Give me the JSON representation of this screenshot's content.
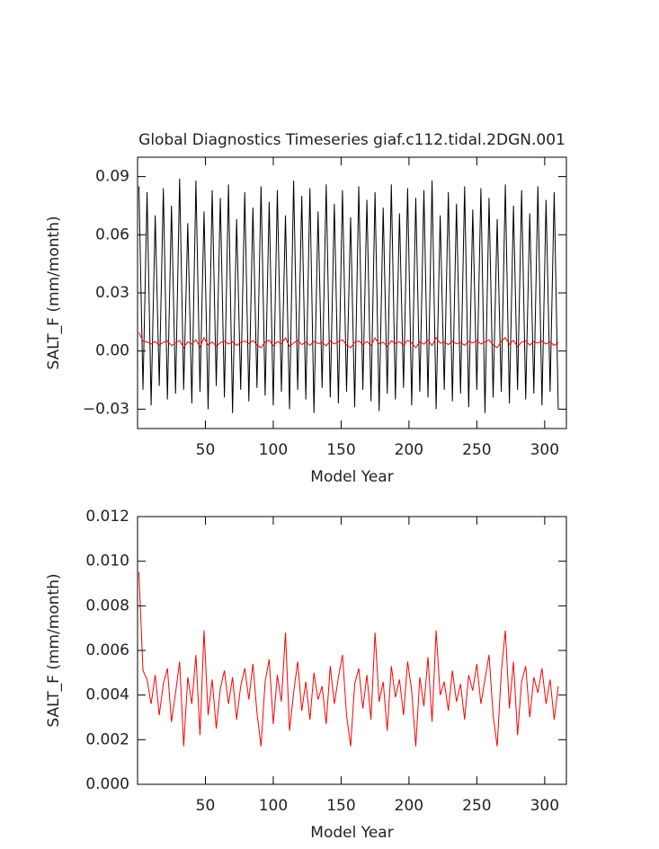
{
  "chart_data": [
    {
      "type": "line",
      "title": "Global Diagnostics Timeseries giaf.c112.tidal.2DGN.001",
      "xlabel": "Model Year",
      "ylabel": "SALT_F (mm/month)",
      "xlim": [
        0,
        316
      ],
      "xticks": [
        50,
        100,
        150,
        200,
        250,
        300
      ],
      "ylim": [
        -0.04,
        0.1
      ],
      "yticks": [
        {
          "value": -0.03,
          "label": "−0.03"
        },
        {
          "value": 0,
          "label": "0.00"
        },
        0.03,
        0.06,
        0.09
      ],
      "x": [
        1,
        4,
        7,
        10,
        13,
        16,
        19,
        22,
        25,
        28,
        31,
        34,
        37,
        40,
        43,
        46,
        49,
        52,
        55,
        58,
        61,
        64,
        67,
        70,
        73,
        76,
        79,
        82,
        85,
        88,
        91,
        94,
        97,
        100,
        103,
        106,
        109,
        112,
        115,
        118,
        121,
        124,
        127,
        130,
        133,
        136,
        139,
        142,
        145,
        148,
        151,
        154,
        157,
        160,
        163,
        166,
        169,
        172,
        175,
        178,
        181,
        184,
        187,
        190,
        193,
        196,
        199,
        202,
        205,
        208,
        211,
        214,
        217,
        220,
        223,
        226,
        229,
        232,
        235,
        238,
        241,
        244,
        247,
        250,
        253,
        256,
        259,
        262,
        265,
        268,
        271,
        274,
        277,
        280,
        283,
        286,
        289,
        292,
        295,
        298,
        301,
        304,
        307,
        310
      ],
      "series": [
        {
          "color": "#000000",
          "values": [
            0.085,
            -0.02,
            0.082,
            -0.028,
            0.07,
            -0.018,
            0.084,
            -0.025,
            0.075,
            -0.022,
            0.089,
            -0.02,
            0.066,
            -0.027,
            0.088,
            -0.021,
            0.072,
            -0.03,
            0.083,
            -0.018,
            0.079,
            -0.024,
            0.086,
            -0.032,
            0.068,
            -0.02,
            0.082,
            -0.026,
            0.074,
            -0.019,
            0.085,
            -0.023,
            0.077,
            -0.028,
            0.083,
            -0.021,
            0.07,
            -0.03,
            0.088,
            -0.02,
            0.08,
            -0.025,
            0.084,
            -0.032,
            0.072,
            -0.019,
            0.086,
            -0.024,
            0.076,
            -0.027,
            0.083,
            -0.021,
            0.069,
            -0.029,
            0.085,
            -0.02,
            0.078,
            -0.026,
            0.082,
            -0.031,
            0.074,
            -0.022,
            0.086,
            -0.025,
            0.071,
            -0.019,
            0.084,
            -0.028,
            0.079,
            -0.021,
            0.083,
            -0.024,
            0.088,
            -0.03,
            0.07,
            -0.02,
            0.082,
            -0.026,
            0.076,
            -0.022,
            0.085,
            -0.029,
            0.073,
            -0.02,
            0.084,
            -0.032,
            0.079,
            -0.024,
            0.068,
            -0.021,
            0.086,
            -0.027,
            0.075,
            -0.02,
            0.083,
            -0.025,
            0.071,
            -0.022,
            0.085,
            -0.028,
            0.078,
            -0.021,
            0.082,
            -0.03
          ]
        },
        {
          "color": "#ff0000",
          "values": [
            0.0095,
            0.0051,
            0.0047,
            0.0036,
            0.0049,
            0.0031,
            0.0045,
            0.0052,
            0.0028,
            0.0041,
            0.0055,
            0.0017,
            0.0048,
            0.0036,
            0.0058,
            0.0022,
            0.0069,
            0.0031,
            0.0047,
            0.0025,
            0.0043,
            0.0051,
            0.0036,
            0.0048,
            0.0029,
            0.0044,
            0.0052,
            0.0038,
            0.0054,
            0.0032,
            0.0017,
            0.0046,
            0.0056,
            0.0027,
            0.0049,
            0.0037,
            0.0068,
            0.0024,
            0.0041,
            0.0055,
            0.0033,
            0.0046,
            0.0029,
            0.005,
            0.0038,
            0.0044,
            0.0027,
            0.0053,
            0.0036,
            0.0048,
            0.0058,
            0.0031,
            0.0017,
            0.0045,
            0.0052,
            0.0034,
            0.0049,
            0.0029,
            0.0068,
            0.0037,
            0.0046,
            0.0024,
            0.0053,
            0.0039,
            0.0047,
            0.0031,
            0.0055,
            0.0042,
            0.0017,
            0.0048,
            0.0035,
            0.0057,
            0.0028,
            0.0069,
            0.004,
            0.0046,
            0.0033,
            0.0051,
            0.0037,
            0.0045,
            0.0029,
            0.0049,
            0.0042,
            0.0054,
            0.0036,
            0.0047,
            0.0058,
            0.0031,
            0.0017,
            0.005,
            0.0069,
            0.0034,
            0.0055,
            0.0022,
            0.0046,
            0.0053,
            0.003,
            0.0048,
            0.0041,
            0.0052,
            0.0036,
            0.0047,
            0.0029,
            0.0044
          ]
        }
      ]
    },
    {
      "type": "line",
      "xlabel": "Model Year",
      "ylabel": "SALT_F (mm/month)",
      "xlim": [
        0,
        316
      ],
      "xticks": [
        50,
        100,
        150,
        200,
        250,
        300
      ],
      "ylim": [
        0,
        0.012
      ],
      "yticks": [
        {
          "value": 0,
          "label": "0.000"
        },
        {
          "value": 0.002,
          "label": "0.002"
        },
        {
          "value": 0.004,
          "label": "0.004"
        },
        {
          "value": 0.006,
          "label": "0.006"
        },
        {
          "value": 0.008,
          "label": "0.008"
        },
        {
          "value": 0.01,
          "label": "0.010"
        },
        {
          "value": 0.012,
          "label": "0.012"
        }
      ],
      "x": [
        1,
        4,
        7,
        10,
        13,
        16,
        19,
        22,
        25,
        28,
        31,
        34,
        37,
        40,
        43,
        46,
        49,
        52,
        55,
        58,
        61,
        64,
        67,
        70,
        73,
        76,
        79,
        82,
        85,
        88,
        91,
        94,
        97,
        100,
        103,
        106,
        109,
        112,
        115,
        118,
        121,
        124,
        127,
        130,
        133,
        136,
        139,
        142,
        145,
        148,
        151,
        154,
        157,
        160,
        163,
        166,
        169,
        172,
        175,
        178,
        181,
        184,
        187,
        190,
        193,
        196,
        199,
        202,
        205,
        208,
        211,
        214,
        217,
        220,
        223,
        226,
        229,
        232,
        235,
        238,
        241,
        244,
        247,
        250,
        253,
        256,
        259,
        262,
        265,
        268,
        271,
        274,
        277,
        280,
        283,
        286,
        289,
        292,
        295,
        298,
        301,
        304,
        307,
        310
      ],
      "series": [
        {
          "color": "#ff0000",
          "values": [
            0.0095,
            0.0051,
            0.0047,
            0.0036,
            0.0049,
            0.0031,
            0.0045,
            0.0052,
            0.0028,
            0.0041,
            0.0055,
            0.0017,
            0.0048,
            0.0036,
            0.0058,
            0.0022,
            0.0069,
            0.0031,
            0.0047,
            0.0025,
            0.0043,
            0.0051,
            0.0036,
            0.0048,
            0.0029,
            0.0044,
            0.0052,
            0.0038,
            0.0054,
            0.0032,
            0.0017,
            0.0046,
            0.0056,
            0.0027,
            0.0049,
            0.0037,
            0.0068,
            0.0024,
            0.0041,
            0.0055,
            0.0033,
            0.0046,
            0.0029,
            0.005,
            0.0038,
            0.0044,
            0.0027,
            0.0053,
            0.0036,
            0.0048,
            0.0058,
            0.0031,
            0.0017,
            0.0045,
            0.0052,
            0.0034,
            0.0049,
            0.0029,
            0.0068,
            0.0037,
            0.0046,
            0.0024,
            0.0053,
            0.0039,
            0.0047,
            0.0031,
            0.0055,
            0.0042,
            0.0017,
            0.0048,
            0.0035,
            0.0057,
            0.0028,
            0.0069,
            0.004,
            0.0046,
            0.0033,
            0.0051,
            0.0037,
            0.0045,
            0.0029,
            0.0049,
            0.0042,
            0.0054,
            0.0036,
            0.0047,
            0.0058,
            0.0031,
            0.0017,
            0.005,
            0.0069,
            0.0034,
            0.0055,
            0.0022,
            0.0046,
            0.0053,
            0.003,
            0.0048,
            0.0041,
            0.0052,
            0.0036,
            0.0047,
            0.0029,
            0.0044
          ]
        }
      ]
    }
  ]
}
